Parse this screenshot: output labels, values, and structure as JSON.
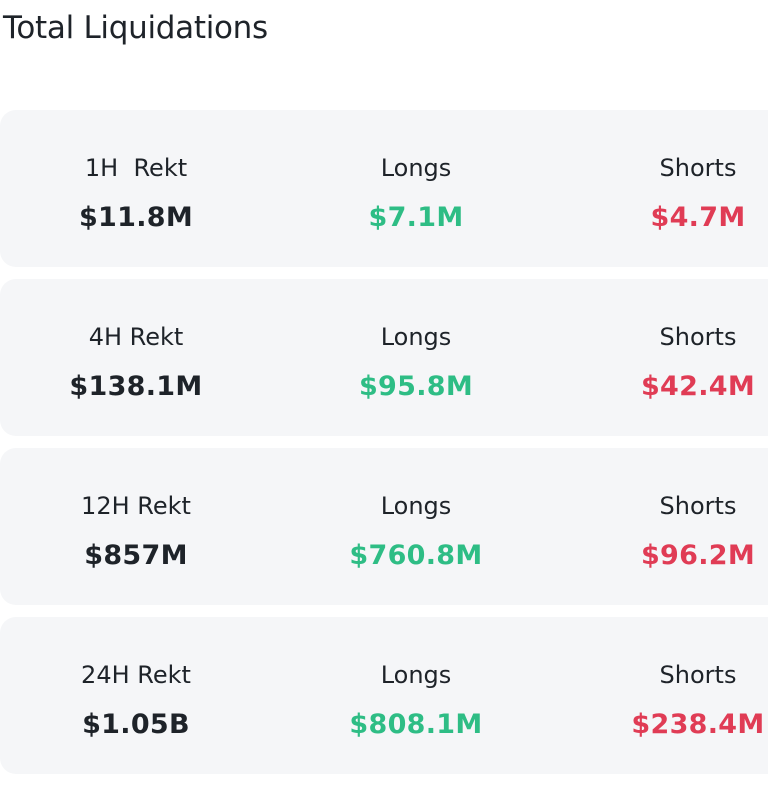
{
  "title": "Total Liquidations",
  "colors": {
    "long": "#2ebd85",
    "short": "#e03c55",
    "text": "#1e2329",
    "card_bg": "#f5f6f8"
  },
  "rows": [
    {
      "period_label": "1H  Rekt",
      "total": "$11.8M",
      "longs_label": "Longs",
      "longs": "$7.1M",
      "shorts_label": "Shorts",
      "shorts": "$4.7M"
    },
    {
      "period_label": "4H Rekt",
      "total": "$138.1M",
      "longs_label": "Longs",
      "longs": "$95.8M",
      "shorts_label": "Shorts",
      "shorts": "$42.4M"
    },
    {
      "period_label": "12H Rekt",
      "total": "$857M",
      "longs_label": "Longs",
      "longs": "$760.8M",
      "shorts_label": "Shorts",
      "shorts": "$96.2M"
    },
    {
      "period_label": "24H Rekt",
      "total": "$1.05B",
      "longs_label": "Longs",
      "longs": "$808.1M",
      "shorts_label": "Shorts",
      "shorts": "$238.4M"
    }
  ]
}
